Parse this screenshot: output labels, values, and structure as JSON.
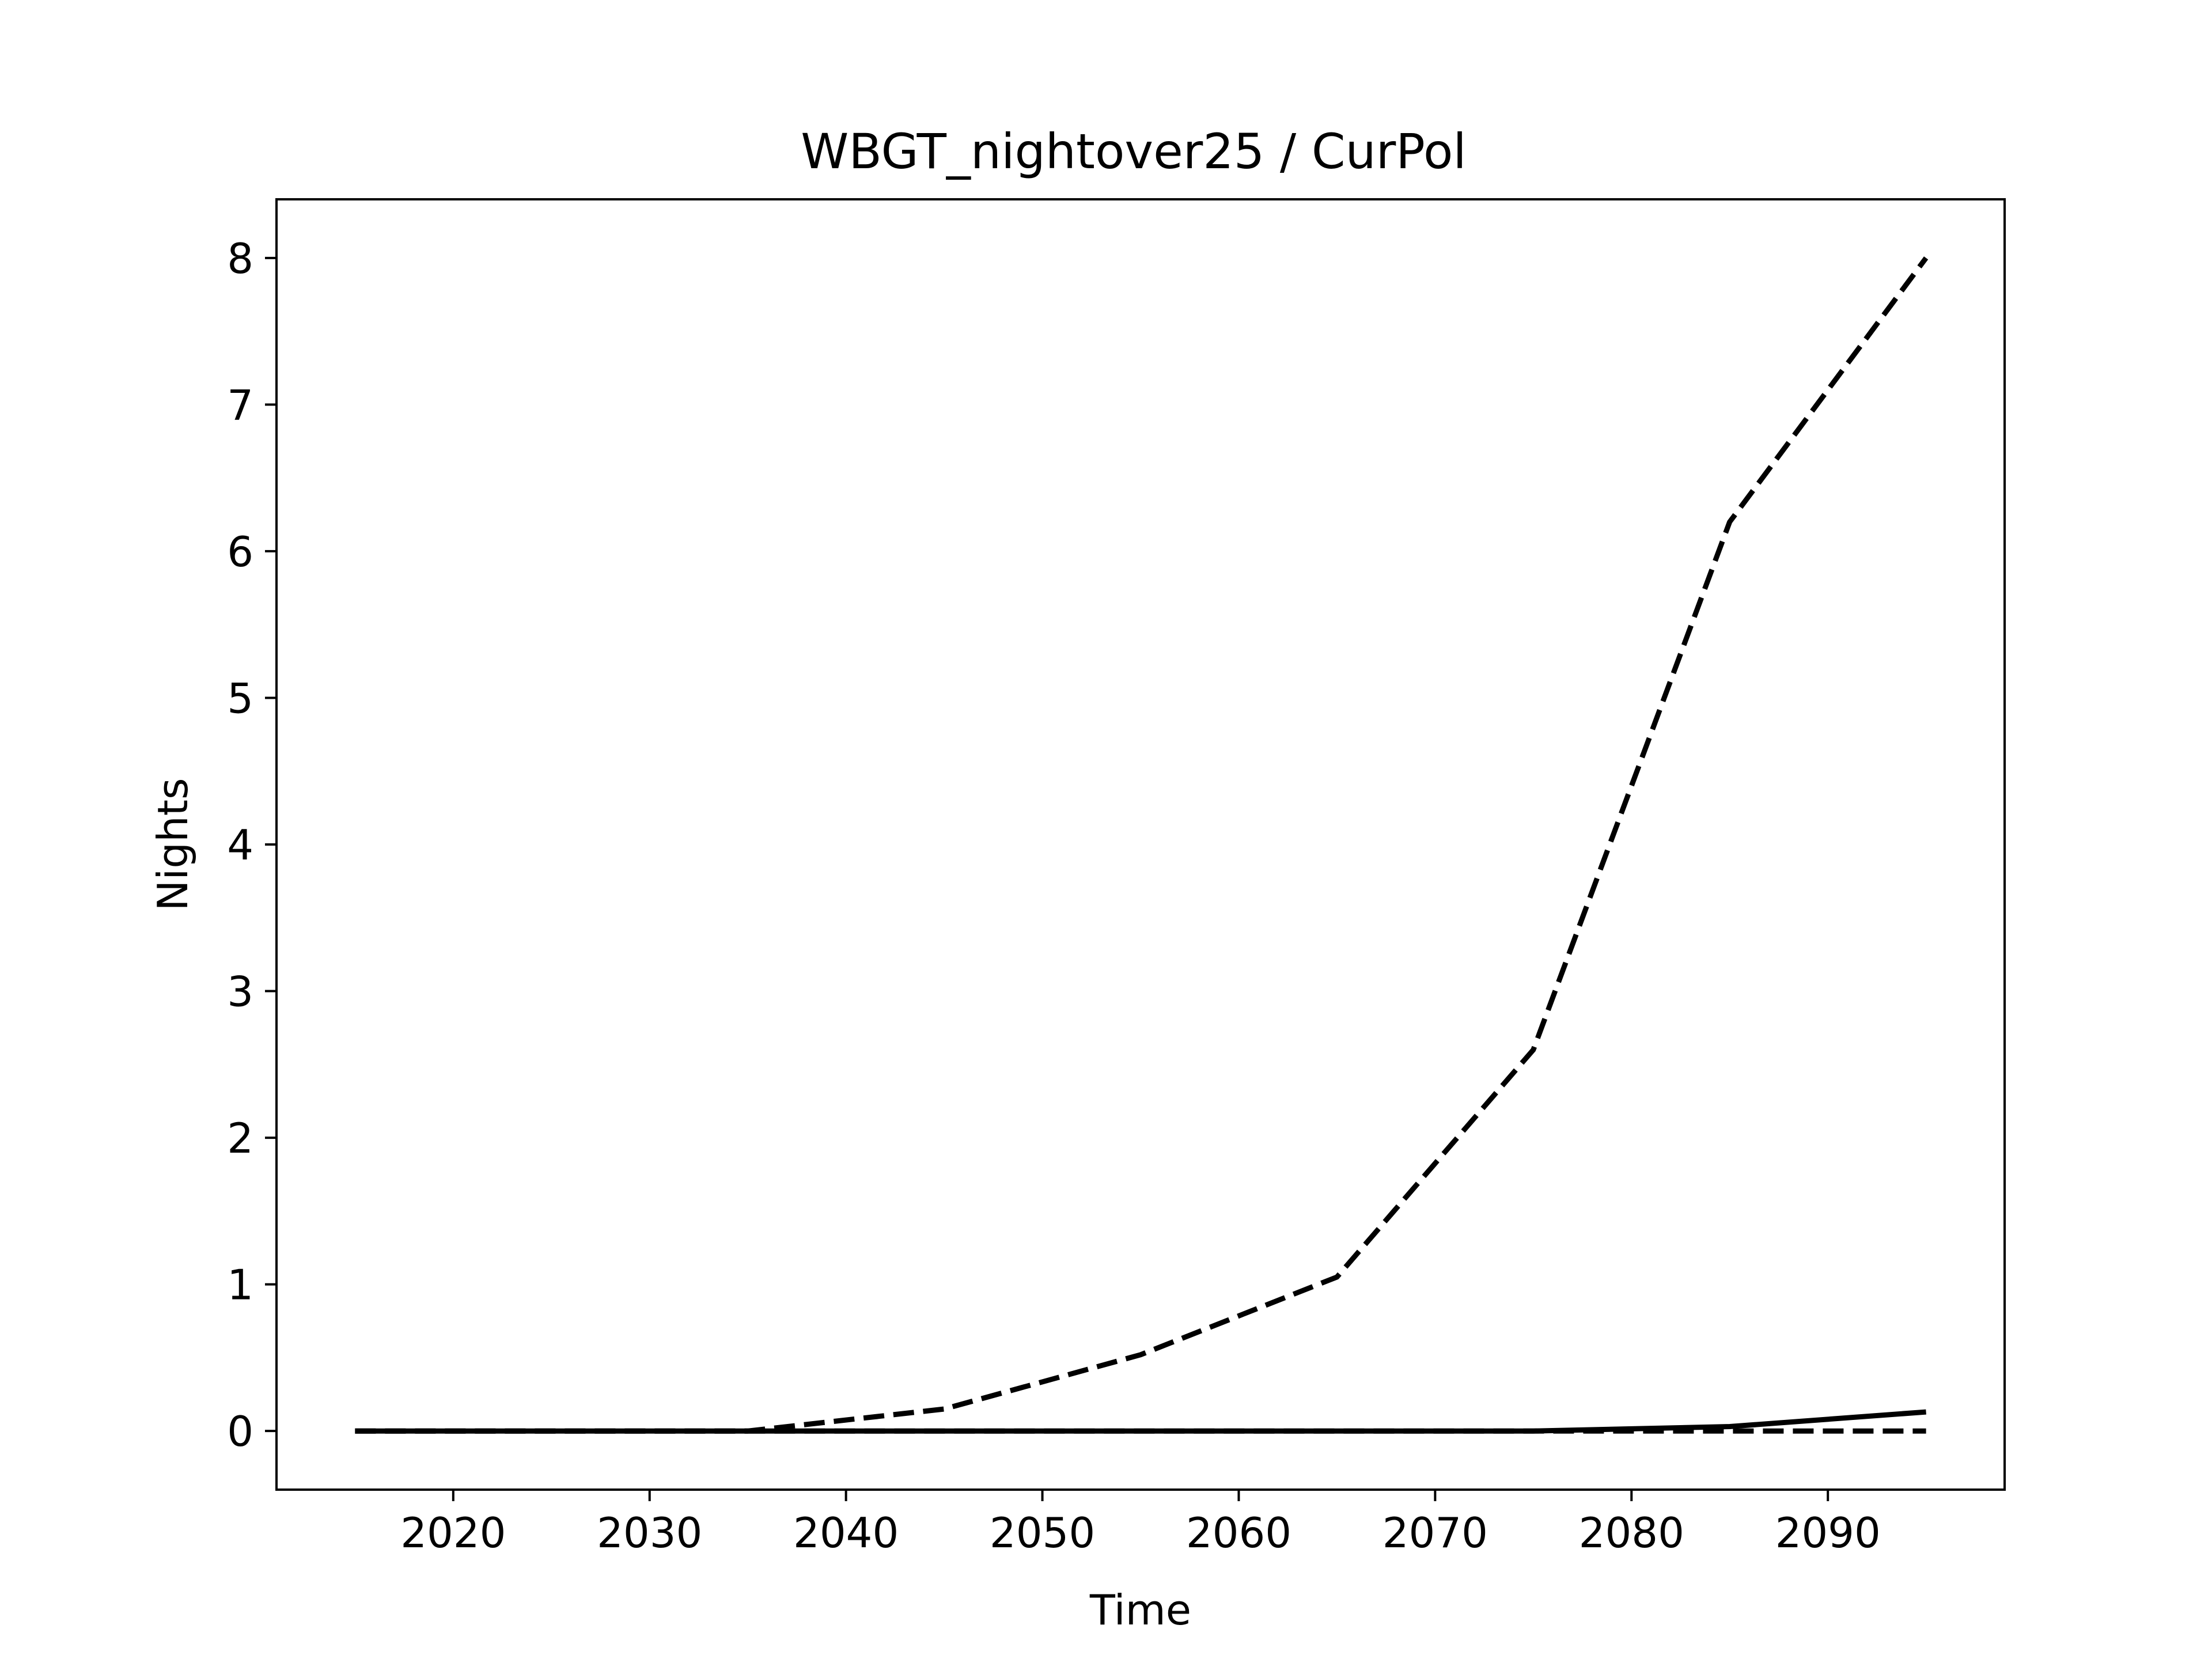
{
  "chart_data": {
    "type": "line",
    "title": "WBGT_nightover25 / CurPol",
    "xlabel": "Time",
    "ylabel": "Nights",
    "xlim": [
      2011,
      2099
    ],
    "ylim": [
      -0.4,
      8.4
    ],
    "xticks": [
      2020,
      2030,
      2040,
      2050,
      2060,
      2070,
      2080,
      2090
    ],
    "yticks": [
      0,
      1,
      2,
      3,
      4,
      5,
      6,
      7,
      8
    ],
    "grid": false,
    "legend": "none",
    "x": [
      2015,
      2025,
      2035,
      2045,
      2055,
      2065,
      2075,
      2085,
      2095
    ],
    "series": [
      {
        "values": [
          0,
          0,
          0,
          0.15,
          0.52,
          1.05,
          2.6,
          6.2,
          8.0
        ],
        "style": "dashed",
        "color": "#000000"
      },
      {
        "values": [
          0,
          0,
          0,
          0,
          0,
          0,
          0,
          0,
          0
        ],
        "style": "dashed",
        "color": "#000000"
      },
      {
        "values": [
          0,
          0,
          0,
          0,
          0,
          0,
          0,
          0.03,
          0.13
        ],
        "style": "solid",
        "color": "#000000"
      }
    ]
  }
}
